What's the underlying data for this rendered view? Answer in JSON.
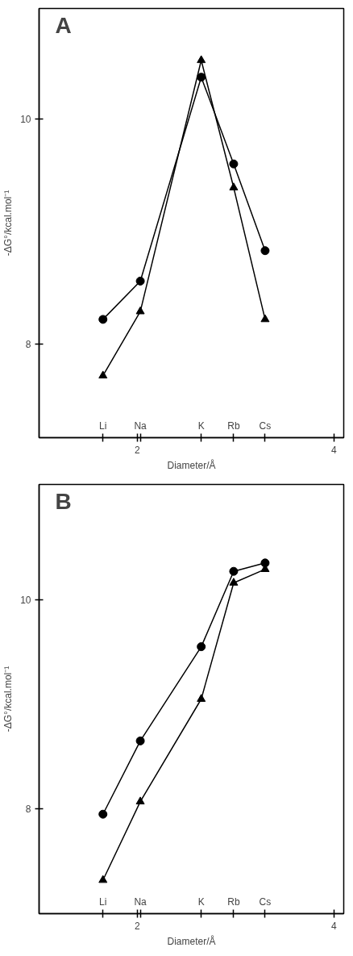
{
  "chart_data": [
    {
      "type": "line",
      "title": "A",
      "xlabel": "Diameter/Å",
      "ylabel": "-ΔG°/kcal.mol⁻¹",
      "x": [
        1.65,
        2.03,
        2.65,
        2.98,
        3.3
      ],
      "xlim": [
        1.0,
        4.1
      ],
      "ylim": [
        7.17,
        10.98
      ],
      "xticks": [
        2,
        4,
        {
          "value": 1.65,
          "label": null
        },
        {
          "value": 2.03,
          "label": null
        },
        {
          "value": 2.65,
          "label": null
        },
        {
          "value": 2.98,
          "label": null
        },
        {
          "value": 3.3,
          "label": null
        }
      ],
      "yticks": [
        8,
        10
      ],
      "grid": false,
      "series": [
        {
          "color": "#000000",
          "marker": "circle",
          "values": [
            8.22,
            8.56,
            10.37,
            9.6,
            8.83
          ]
        },
        {
          "color": "#000000",
          "marker": "triangle",
          "values": [
            7.72,
            8.29,
            10.52,
            9.39,
            8.22
          ]
        }
      ],
      "annotations": [
        "Li",
        "Na",
        "K",
        "Rb",
        "Cs"
      ]
    },
    {
      "type": "line",
      "title": "B",
      "xlabel": "Diameter/Å",
      "ylabel": "-ΔG°/kcal.mol⁻¹",
      "x": [
        1.65,
        2.03,
        2.65,
        2.98,
        3.3
      ],
      "xlim": [
        1.0,
        4.1
      ],
      "ylim": [
        7.0,
        11.1
      ],
      "xticks": [
        2,
        4,
        {
          "value": 1.65,
          "label": null
        },
        {
          "value": 2.03,
          "label": null
        },
        {
          "value": 2.65,
          "label": null
        },
        {
          "value": 2.98,
          "label": null
        },
        {
          "value": 3.3,
          "label": null
        }
      ],
      "yticks": [
        8,
        10
      ],
      "grid": false,
      "series": [
        {
          "color": "#000000",
          "marker": "circle",
          "values": [
            7.95,
            8.65,
            9.55,
            10.27,
            10.35
          ]
        },
        {
          "color": "#000000",
          "marker": "triangle",
          "values": [
            7.32,
            8.07,
            9.05,
            10.16,
            10.29
          ]
        }
      ],
      "annotations": [
        "Li",
        "Na",
        "K",
        "Rb",
        "Cs"
      ]
    }
  ]
}
